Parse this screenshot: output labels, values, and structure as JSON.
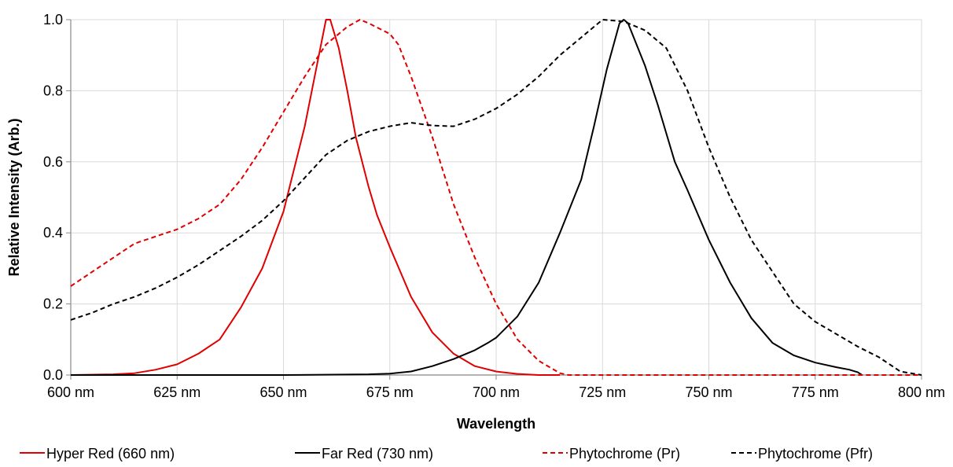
{
  "chart_data": {
    "type": "line",
    "title": "",
    "xlabel": "Wavelength",
    "ylabel": "Relative Intensity (Arb.)",
    "xlim": [
      600,
      800
    ],
    "ylim": [
      0,
      1.0
    ],
    "grid": true,
    "legend_position": "bottom",
    "x_tick_labels": [
      "600 nm",
      "625 nm",
      "650 nm",
      "675 nm",
      "700 nm",
      "725 nm",
      "750 nm",
      "775 nm",
      "800 nm"
    ],
    "x_tick_values": [
      600,
      625,
      650,
      675,
      700,
      725,
      750,
      775,
      800
    ],
    "y_tick_labels": [
      "0.0",
      "0.2",
      "0.4",
      "0.6",
      "0.8",
      "1.0"
    ],
    "y_tick_values": [
      0,
      0.2,
      0.4,
      0.6,
      0.8,
      1.0
    ],
    "series": [
      {
        "name": "Hyper Red (660 nm)",
        "color": "#e00000",
        "dash": "solid",
        "points": [
          [
            600,
            0
          ],
          [
            610,
            0.002
          ],
          [
            615,
            0.005
          ],
          [
            620,
            0.015
          ],
          [
            625,
            0.03
          ],
          [
            630,
            0.06
          ],
          [
            635,
            0.1
          ],
          [
            640,
            0.19
          ],
          [
            645,
            0.3
          ],
          [
            650,
            0.46
          ],
          [
            655,
            0.7
          ],
          [
            658,
            0.88
          ],
          [
            660,
            1.0
          ],
          [
            661,
            1.0
          ],
          [
            663,
            0.92
          ],
          [
            665,
            0.8
          ],
          [
            667,
            0.67
          ],
          [
            670,
            0.53
          ],
          [
            672,
            0.45
          ],
          [
            675,
            0.36
          ],
          [
            680,
            0.22
          ],
          [
            685,
            0.12
          ],
          [
            690,
            0.06
          ],
          [
            695,
            0.025
          ],
          [
            700,
            0.01
          ],
          [
            705,
            0.003
          ],
          [
            710,
            0.0
          ],
          [
            715,
            0.0
          ]
        ]
      },
      {
        "name": "Far Red (730 nm)",
        "color": "#000000",
        "dash": "solid",
        "points": [
          [
            600,
            0
          ],
          [
            650,
            0
          ],
          [
            670,
            0.002
          ],
          [
            675,
            0.004
          ],
          [
            680,
            0.01
          ],
          [
            685,
            0.025
          ],
          [
            690,
            0.045
          ],
          [
            695,
            0.07
          ],
          [
            698,
            0.09
          ],
          [
            700,
            0.105
          ],
          [
            705,
            0.165
          ],
          [
            710,
            0.26
          ],
          [
            715,
            0.4
          ],
          [
            720,
            0.55
          ],
          [
            723,
            0.7
          ],
          [
            726,
            0.86
          ],
          [
            729,
            0.99
          ],
          [
            730,
            1.0
          ],
          [
            731,
            0.99
          ],
          [
            735,
            0.87
          ],
          [
            738,
            0.76
          ],
          [
            742,
            0.6
          ],
          [
            745,
            0.52
          ],
          [
            750,
            0.38
          ],
          [
            755,
            0.26
          ],
          [
            760,
            0.16
          ],
          [
            765,
            0.09
          ],
          [
            770,
            0.055
          ],
          [
            775,
            0.035
          ],
          [
            780,
            0.022
          ],
          [
            783,
            0.015
          ],
          [
            785,
            0.008
          ],
          [
            786,
            0.0
          ]
        ]
      },
      {
        "name": "Phytochrome (Pr)",
        "color": "#e00000",
        "dash": "dashed",
        "points": [
          [
            600,
            0.25
          ],
          [
            605,
            0.29
          ],
          [
            610,
            0.33
          ],
          [
            615,
            0.37
          ],
          [
            620,
            0.39
          ],
          [
            625,
            0.41
          ],
          [
            630,
            0.44
          ],
          [
            635,
            0.48
          ],
          [
            640,
            0.55
          ],
          [
            645,
            0.64
          ],
          [
            650,
            0.74
          ],
          [
            655,
            0.84
          ],
          [
            660,
            0.93
          ],
          [
            665,
            0.98
          ],
          [
            668,
            1.0
          ],
          [
            670,
            0.99
          ],
          [
            675,
            0.96
          ],
          [
            677,
            0.93
          ],
          [
            680,
            0.84
          ],
          [
            685,
            0.67
          ],
          [
            690,
            0.48
          ],
          [
            695,
            0.33
          ],
          [
            700,
            0.2
          ],
          [
            705,
            0.1
          ],
          [
            710,
            0.04
          ],
          [
            715,
            0.005
          ],
          [
            717,
            0.0
          ],
          [
            720,
            0.0
          ],
          [
            800,
            0.0
          ]
        ]
      },
      {
        "name": "Phytochrome (Pfr)",
        "color": "#000000",
        "dash": "dashed",
        "points": [
          [
            600,
            0.155
          ],
          [
            605,
            0.175
          ],
          [
            610,
            0.2
          ],
          [
            615,
            0.22
          ],
          [
            620,
            0.245
          ],
          [
            625,
            0.275
          ],
          [
            630,
            0.31
          ],
          [
            635,
            0.35
          ],
          [
            640,
            0.39
          ],
          [
            645,
            0.435
          ],
          [
            650,
            0.49
          ],
          [
            655,
            0.555
          ],
          [
            660,
            0.62
          ],
          [
            665,
            0.66
          ],
          [
            670,
            0.685
          ],
          [
            675,
            0.7
          ],
          [
            680,
            0.71
          ],
          [
            685,
            0.702
          ],
          [
            690,
            0.7
          ],
          [
            695,
            0.72
          ],
          [
            700,
            0.75
          ],
          [
            705,
            0.79
          ],
          [
            710,
            0.84
          ],
          [
            715,
            0.9
          ],
          [
            720,
            0.95
          ],
          [
            725,
            1.0
          ],
          [
            730,
            0.995
          ],
          [
            735,
            0.97
          ],
          [
            740,
            0.92
          ],
          [
            745,
            0.8
          ],
          [
            750,
            0.64
          ],
          [
            755,
            0.5
          ],
          [
            760,
            0.38
          ],
          [
            765,
            0.29
          ],
          [
            770,
            0.2
          ],
          [
            775,
            0.15
          ],
          [
            780,
            0.115
          ],
          [
            785,
            0.08
          ],
          [
            790,
            0.05
          ],
          [
            795,
            0.01
          ],
          [
            800,
            0.0
          ]
        ]
      }
    ]
  }
}
